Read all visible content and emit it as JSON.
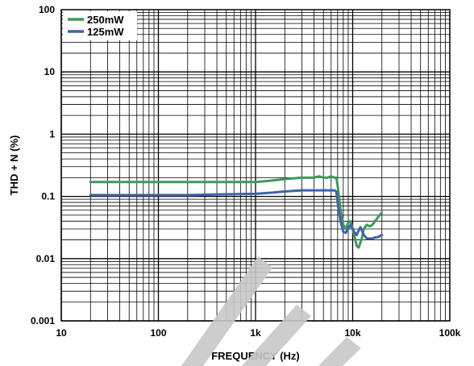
{
  "chart_data": {
    "type": "line",
    "xscale": "log",
    "yscale": "log",
    "xlim": [
      10,
      100000
    ],
    "ylim": [
      0.001,
      100
    ],
    "xlabel": "FREQUENCY (Hz)",
    "ylabel": "THD + N (%)",
    "x_tick_labels": [
      "10",
      "100",
      "1k",
      "10k",
      "100k"
    ],
    "y_tick_labels": [
      "0.001",
      "0.01",
      "0.1",
      "1",
      "10",
      "100"
    ],
    "grid": true,
    "legend_position": "top-left",
    "series": [
      {
        "name": "250mW",
        "color": "#3a9a5b",
        "x": [
          20,
          30,
          50,
          100,
          200,
          500,
          1000,
          1500,
          2000,
          3000,
          4000,
          4500,
          5000,
          5500,
          6000,
          6500,
          6800,
          7000,
          7500,
          8000,
          8500,
          9000,
          9500,
          10000,
          10500,
          11000,
          11500,
          12000,
          12500,
          13000,
          14000,
          15000,
          16000,
          17000,
          18000,
          19000,
          20000
        ],
        "y": [
          0.17,
          0.17,
          0.17,
          0.17,
          0.17,
          0.17,
          0.17,
          0.18,
          0.19,
          0.2,
          0.2,
          0.21,
          0.2,
          0.2,
          0.21,
          0.2,
          0.2,
          0.15,
          0.06,
          0.035,
          0.03,
          0.038,
          0.04,
          0.03,
          0.022,
          0.016,
          0.015,
          0.018,
          0.022,
          0.03,
          0.035,
          0.033,
          0.035,
          0.04,
          0.045,
          0.05,
          0.055
        ]
      },
      {
        "name": "125mW",
        "color": "#3e63a8",
        "x": [
          20,
          30,
          50,
          100,
          200,
          500,
          1000,
          1500,
          2000,
          3000,
          4000,
          5000,
          6000,
          6500,
          6800,
          7000,
          7500,
          8000,
          8500,
          9000,
          9500,
          10000,
          10500,
          11000,
          11500,
          12000,
          12500,
          13000,
          14000,
          15000,
          16000,
          17000,
          18000,
          19000,
          20000
        ],
        "y": [
          0.105,
          0.105,
          0.105,
          0.105,
          0.105,
          0.108,
          0.11,
          0.115,
          0.12,
          0.125,
          0.125,
          0.125,
          0.125,
          0.125,
          0.12,
          0.08,
          0.04,
          0.027,
          0.026,
          0.03,
          0.035,
          0.03,
          0.026,
          0.024,
          0.028,
          0.032,
          0.028,
          0.024,
          0.021,
          0.021,
          0.021,
          0.022,
          0.022,
          0.023,
          0.024
        ]
      }
    ]
  }
}
